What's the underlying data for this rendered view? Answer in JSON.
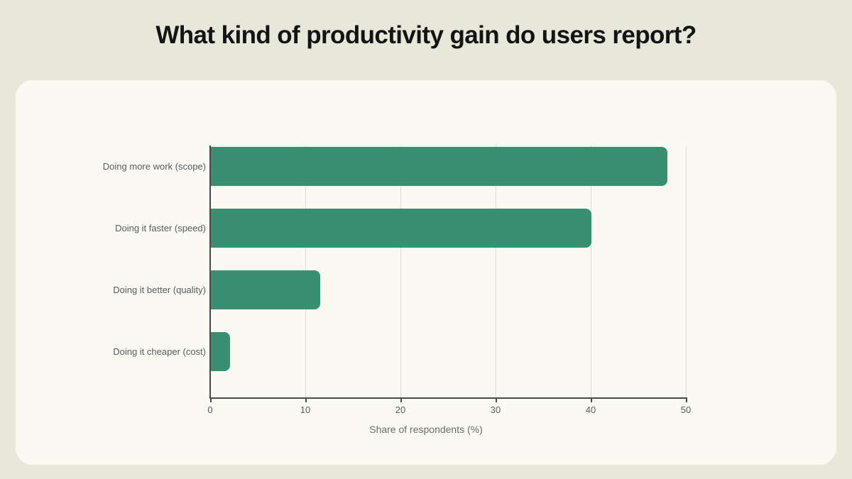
{
  "title": "What kind of productivity gain do users report?",
  "chart_data": {
    "type": "bar",
    "orientation": "horizontal",
    "title": "What kind of productivity gain do users report?",
    "categories": [
      "Doing more work (scope)",
      "Doing it faster (speed)",
      "Doing it better (quality)",
      "Doing it cheaper (cost)"
    ],
    "values": [
      48,
      40,
      11.5,
      2
    ],
    "xlabel": "Share of respondents (%)",
    "ylabel": "",
    "xlim": [
      0,
      50
    ],
    "xticks": [
      0,
      10,
      20,
      30,
      40,
      50
    ],
    "grid": true,
    "legend": false,
    "colors": {
      "bar": "#3a8e71",
      "page_background": "#e8e8da",
      "card_background": "#faf9f2",
      "grid_line": "#dedcd2",
      "axis_line": "#4a4a48",
      "tick_text": "#5a5b5e",
      "axis_title_text": "#6b6b6b",
      "title_text": "#141414"
    }
  }
}
